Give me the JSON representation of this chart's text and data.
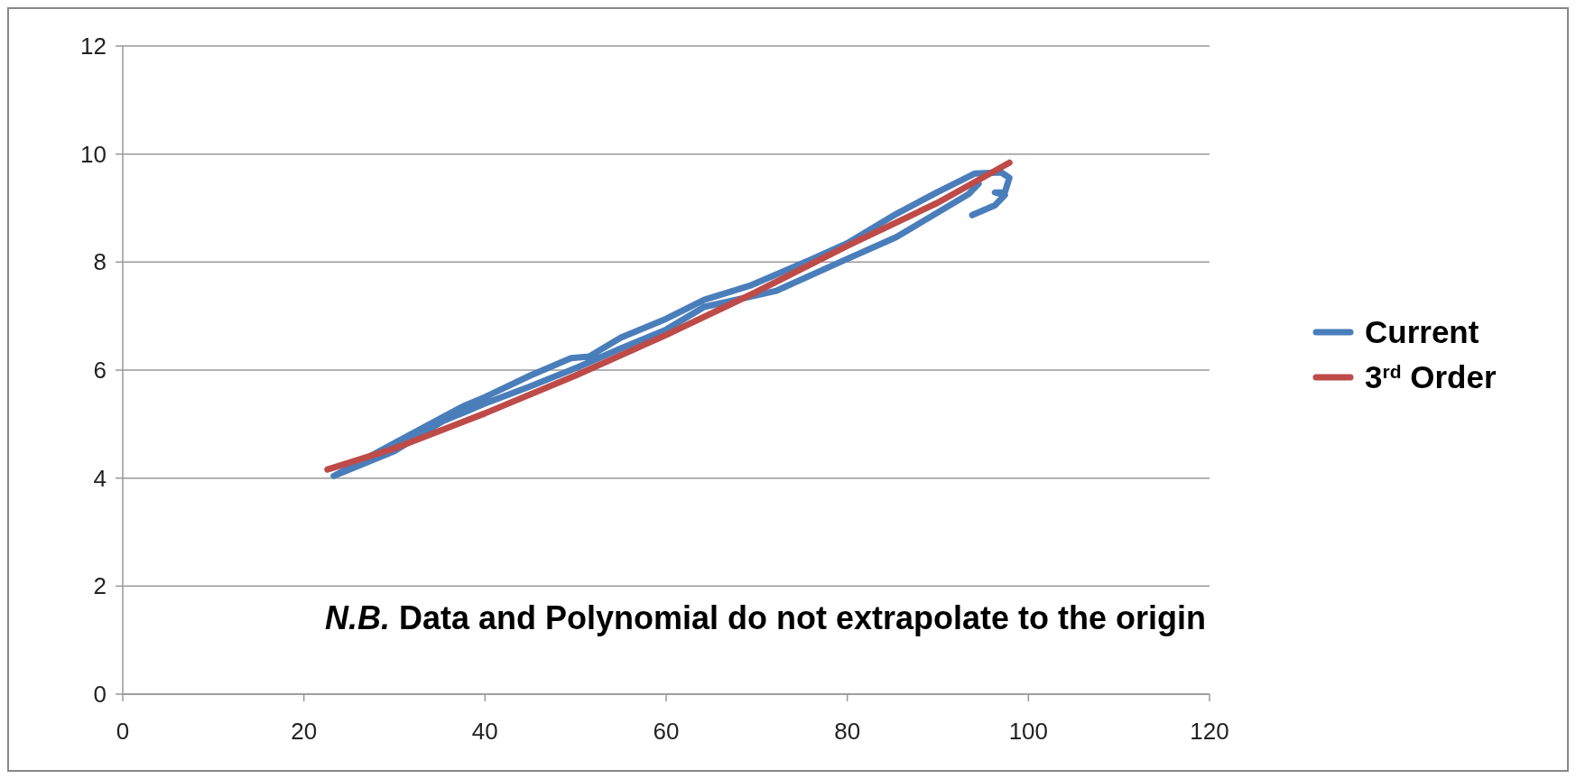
{
  "chart_data": {
    "type": "line",
    "xlim": [
      0,
      120
    ],
    "xticks": [
      0,
      20,
      40,
      60,
      80,
      100,
      120
    ],
    "ylim": [
      0,
      12
    ],
    "yticks": [
      0,
      2,
      4,
      6,
      8,
      10,
      12
    ],
    "grid": "y",
    "legend": "right",
    "marker": "none",
    "line_style": "solid",
    "annotations": [
      "N.B. Data and Polynomial do not extrapolate to the origin"
    ],
    "series": [
      {
        "name": "Current",
        "color": "#4a7ebb",
        "x": [
          93.8,
          96.3,
          97.4,
          96.3,
          97.4,
          97.9,
          97,
          94.1,
          90,
          85.4,
          80,
          75.9,
          69.2,
          64.2,
          60,
          55,
          51.5,
          49.5,
          45,
          40,
          37.6,
          30,
          23.3,
          30,
          35.3,
          40,
          45,
          50.2,
          55,
          60,
          64.2,
          72.2,
          79.2,
          85.4,
          93.4,
          94.5
        ],
        "values": [
          8.87,
          9.05,
          9.24,
          9.29,
          9.29,
          9.56,
          9.66,
          9.64,
          9.3,
          8.89,
          8.35,
          8.04,
          7.56,
          7.3,
          6.95,
          6.6,
          6.25,
          6.22,
          5.9,
          5.5,
          5.33,
          4.65,
          4.04,
          4.5,
          5.05,
          5.38,
          5.7,
          6.05,
          6.4,
          6.75,
          7.17,
          7.47,
          8.0,
          8.46,
          9.26,
          9.45
        ]
      },
      {
        "name": "3$^{rd}$ Order",
        "color": "#be4b48",
        "x": [
          22.6,
          30,
          40,
          50,
          60,
          70,
          80,
          90,
          97.9
        ],
        "values": [
          4.16,
          4.55,
          5.2,
          5.9,
          6.65,
          7.45,
          8.3,
          9.1,
          9.84
        ]
      }
    ]
  }
}
